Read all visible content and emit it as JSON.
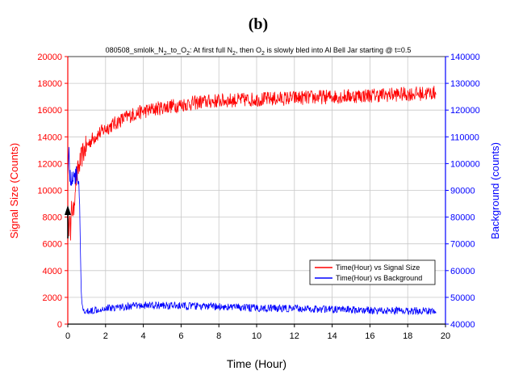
{
  "panel_label": "(b)",
  "chart_data": {
    "type": "line",
    "title": {
      "prefix": "080508_smlolk_N",
      "sub1": "2",
      "mid1": "_to_O",
      "sub2": "2",
      "mid2": ":  At first full N",
      "sub3": "2",
      "mid3": ", then O",
      "sub4": "2",
      "suffix": " is slowly bled into Al Bell Jar starting @ t=0.5"
    },
    "xlabel": "Time (Hour)",
    "ylabel_left": "Signal Size (Counts)",
    "ylabel_right": "Background (counts)",
    "xlim": [
      0,
      20
    ],
    "ylim_left": [
      0,
      20000
    ],
    "ylim_right": [
      40000,
      140000
    ],
    "x_ticks": [
      "0",
      "2",
      "4",
      "6",
      "8",
      "10",
      "12",
      "14",
      "16",
      "18",
      "20"
    ],
    "y_left_ticks": [
      "0",
      "2000",
      "4000",
      "6000",
      "8000",
      "10000",
      "12000",
      "14000",
      "16000",
      "18000",
      "20000"
    ],
    "y_right_ticks": [
      "40000",
      "50000",
      "60000",
      "70000",
      "80000",
      "90000",
      "100000",
      "110000",
      "120000",
      "130000",
      "140000"
    ],
    "grid": true,
    "legend_position": "lower-right",
    "colors": {
      "signal": "#ff0000",
      "background": "#0000ff",
      "axis_left": "#ff0000",
      "axis_right": "#0000ff",
      "grid": "#c8c8c8"
    },
    "series": [
      {
        "name": "Time(Hour) vs Signal Size",
        "axis": "left",
        "color": "#ff0000",
        "x": [
          0,
          0.05,
          0.1,
          0.15,
          0.2,
          0.3,
          0.4,
          0.5,
          0.6,
          0.7,
          0.8,
          1.0,
          1.2,
          1.5,
          2.0,
          2.5,
          3.0,
          3.5,
          4.0,
          5.0,
          6.0,
          7.0,
          8.0,
          9.0,
          10.0,
          11.0,
          12.0,
          13.0,
          14.0,
          15.0,
          16.0,
          17.0,
          18.0,
          19.0,
          19.5
        ],
        "y": [
          8500,
          6500,
          9500,
          6000,
          9000,
          8200,
          10500,
          11200,
          11800,
          12300,
          12800,
          13300,
          13700,
          14100,
          14600,
          15000,
          15400,
          15700,
          15900,
          16200,
          16400,
          16600,
          16700,
          16750,
          16800,
          16850,
          16900,
          16950,
          17000,
          17050,
          17100,
          17150,
          17200,
          17250,
          17300
        ]
      },
      {
        "name": "Time(Hour) vs Background",
        "axis": "right",
        "color": "#0000ff",
        "x": [
          0,
          0.05,
          0.1,
          0.2,
          0.3,
          0.4,
          0.5,
          0.6,
          0.65,
          0.7,
          0.75,
          0.8,
          0.9,
          1.0,
          1.5,
          2.0,
          3.0,
          4.0,
          5.0,
          6.0,
          8.0,
          10.0,
          12.0,
          14.0,
          16.0,
          18.0,
          19.5
        ],
        "y": [
          95000,
          108000,
          96000,
          93000,
          97000,
          95000,
          96000,
          92000,
          75000,
          55000,
          47000,
          45000,
          44500,
          44500,
          45500,
          46000,
          46500,
          47000,
          47000,
          46800,
          46500,
          46000,
          45800,
          45500,
          45200,
          45000,
          45000
        ]
      }
    ]
  }
}
